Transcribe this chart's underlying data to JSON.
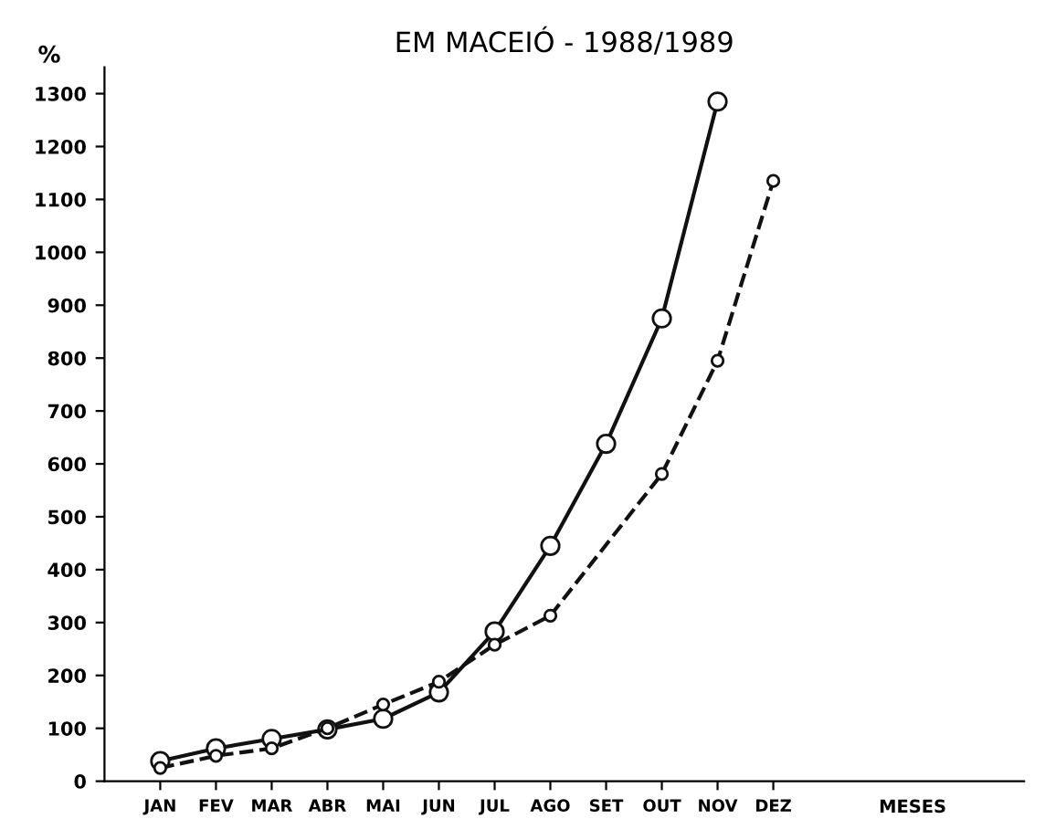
{
  "chart_data": {
    "type": "line",
    "title": "EM MACEIÓ - 1988/1989",
    "xlabel": "MESES",
    "ylabel": "%",
    "categories": [
      "JAN",
      "FEV",
      "MAR",
      "ABR",
      "MAI",
      "JUN",
      "JUL",
      "AGO",
      "SET",
      "OUT",
      "NOV",
      "DEZ"
    ],
    "series": [
      {
        "color": "#111111",
        "line_style": "solid",
        "values": [
          38,
          62,
          80,
          98,
          118,
          168,
          283,
          445,
          638,
          875,
          1285,
          null
        ]
      },
      {
        "color": "#111111",
        "line_style": "dashed",
        "values": [
          25,
          48,
          62,
          100,
          145,
          188,
          258,
          313,
          null,
          581,
          795,
          1135
        ]
      }
    ],
    "ylim": [
      0,
      1350
    ],
    "yticks": [
      0,
      100,
      200,
      300,
      400,
      500,
      600,
      700,
      800,
      900,
      1000,
      1100,
      1200,
      1300
    ],
    "marker": "circle",
    "grid": false,
    "legend": false
  }
}
